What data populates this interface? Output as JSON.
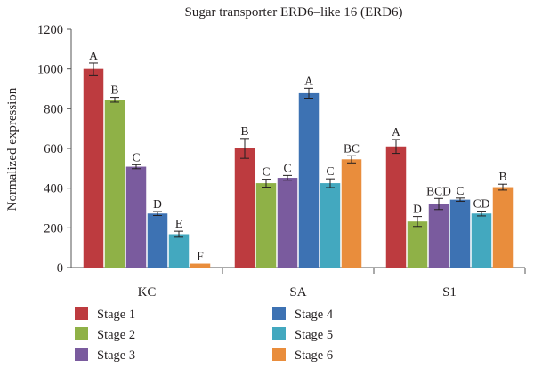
{
  "chart_data": {
    "type": "bar",
    "title": "Sugar transporter ERD6–like 16 (ERD6)",
    "xlabel": "",
    "ylabel": "Normalized expression",
    "ylim": [
      0,
      1200
    ],
    "yticks": [
      "0",
      "200",
      "400",
      "600",
      "800",
      "1000",
      "1200"
    ],
    "categories": [
      "KC",
      "SA",
      "S1"
    ],
    "grid": false,
    "legend_position": "bottom",
    "series": [
      {
        "name": "Stage 1",
        "color": "#bd3b3f",
        "values": [
          1000,
          600,
          610
        ],
        "errors": [
          30,
          50,
          35
        ],
        "labels": [
          "A",
          "B",
          "A"
        ]
      },
      {
        "name": "Stage 2",
        "color": "#8fb147",
        "values": [
          845,
          425,
          232
        ],
        "errors": [
          12,
          20,
          25
        ],
        "labels": [
          "B",
          "C",
          "D"
        ]
      },
      {
        "name": "Stage 3",
        "color": "#7a5b9e",
        "values": [
          508,
          452,
          320
        ],
        "errors": [
          10,
          12,
          28
        ],
        "labels": [
          "C",
          "C",
          "BCD"
        ]
      },
      {
        "name": "Stage 4",
        "color": "#3d72b3",
        "values": [
          272,
          878,
          342
        ],
        "errors": [
          10,
          25,
          8
        ],
        "labels": [
          "D",
          "A",
          "C"
        ]
      },
      {
        "name": "Stage 5",
        "color": "#43a8bf",
        "values": [
          168,
          425,
          272
        ],
        "errors": [
          15,
          22,
          12
        ],
        "labels": [
          "E",
          "C",
          "CD"
        ]
      },
      {
        "name": "Stage 6",
        "color": "#e98d3c",
        "values": [
          20,
          545,
          405
        ],
        "errors": [
          0,
          18,
          15
        ],
        "labels": [
          "F",
          "BC",
          "B"
        ]
      }
    ]
  }
}
